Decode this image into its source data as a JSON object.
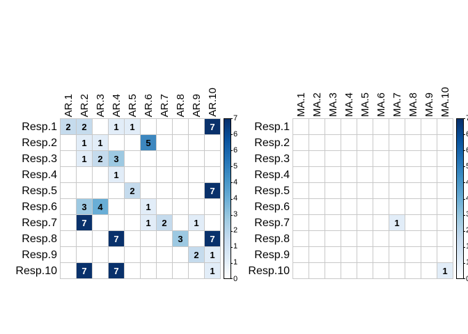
{
  "background": "#ffffff",
  "grid_line_color": "#c8c8c8",
  "value_colors": {
    "0": "#ffffff",
    "1": "#e2edf8",
    "2": "#c5dbed",
    "3": "#9dc9e2",
    "4": "#69aed6",
    "5": "#3d87bf",
    "6": "#1c60a7",
    "7": "#09316b"
  },
  "value_text_colors": {
    "light": "#ffffff",
    "dark": "#000000",
    "light_text_min_value": 6
  },
  "colorbar": {
    "ticks_top_to_bottom": [
      "7",
      "6",
      "6",
      "5",
      "4",
      "4",
      "3",
      "2",
      "1",
      "1",
      "0"
    ],
    "gradient_bottom_to_top": [
      "#ffffff",
      "#deebf7",
      "#c6dbef",
      "#9ecae1",
      "#6baed6",
      "#4292c6",
      "#2171b5",
      "#08519c",
      "#08306b"
    ],
    "border_color": "#000000"
  },
  "chart_data": [
    {
      "type": "heatmap",
      "name": "AR-heatmap",
      "title": "",
      "xlabel": "",
      "ylabel": "",
      "zlim": [
        0,
        7
      ],
      "legend_position": "right-colorbar",
      "grid": true,
      "columns": [
        "AR.1",
        "AR.2",
        "AR.3",
        "AR.4",
        "AR.5",
        "AR.6",
        "AR.7",
        "AR.8",
        "AR.9",
        "AR.10"
      ],
      "rows": [
        "Resp.1",
        "Resp.2",
        "Resp.3",
        "Resp.4",
        "Resp.5",
        "Resp.6",
        "Resp.7",
        "Resp.8",
        "Resp.9",
        "Resp.10"
      ],
      "values": [
        [
          2,
          2,
          0,
          1,
          1,
          0,
          0,
          0,
          0,
          7
        ],
        [
          0,
          1,
          1,
          0,
          0,
          5,
          0,
          0,
          0,
          0
        ],
        [
          0,
          1,
          2,
          3,
          0,
          0,
          0,
          0,
          0,
          0
        ],
        [
          0,
          0,
          0,
          1,
          0,
          0,
          0,
          0,
          0,
          0
        ],
        [
          0,
          0,
          0,
          0,
          2,
          0,
          0,
          0,
          0,
          7
        ],
        [
          0,
          3,
          4,
          0,
          0,
          1,
          0,
          0,
          0,
          0
        ],
        [
          0,
          7,
          0,
          0,
          0,
          1,
          2,
          0,
          1,
          0
        ],
        [
          0,
          0,
          0,
          7,
          0,
          0,
          0,
          3,
          0,
          7
        ],
        [
          0,
          0,
          0,
          0,
          0,
          0,
          0,
          0,
          2,
          1
        ],
        [
          0,
          7,
          0,
          7,
          0,
          0,
          0,
          0,
          0,
          1
        ]
      ]
    },
    {
      "type": "heatmap",
      "name": "MA-heatmap",
      "title": "",
      "xlabel": "",
      "ylabel": "",
      "zlim": [
        0,
        7
      ],
      "legend_position": "right-colorbar",
      "grid": true,
      "columns": [
        "MA.1",
        "MA.2",
        "MA.3",
        "MA.4",
        "MA.5",
        "MA.6",
        "MA.7",
        "MA.8",
        "MA.9",
        "MA.10"
      ],
      "rows": [
        "Resp.1",
        "Resp.2",
        "Resp.3",
        "Resp.4",
        "Resp.5",
        "Resp.6",
        "Resp.7",
        "Resp.8",
        "Resp.9",
        "Resp.10"
      ],
      "values": [
        [
          0,
          0,
          0,
          0,
          0,
          0,
          0,
          0,
          0,
          0
        ],
        [
          0,
          0,
          0,
          0,
          0,
          0,
          0,
          0,
          0,
          0
        ],
        [
          0,
          0,
          0,
          0,
          0,
          0,
          0,
          0,
          0,
          0
        ],
        [
          0,
          0,
          0,
          0,
          0,
          0,
          0,
          0,
          0,
          0
        ],
        [
          0,
          0,
          0,
          0,
          0,
          0,
          0,
          0,
          0,
          0
        ],
        [
          0,
          0,
          0,
          0,
          0,
          0,
          0,
          0,
          0,
          0
        ],
        [
          0,
          0,
          0,
          0,
          0,
          0,
          1,
          0,
          0,
          0
        ],
        [
          0,
          0,
          0,
          0,
          0,
          0,
          0,
          0,
          0,
          0
        ],
        [
          0,
          0,
          0,
          0,
          0,
          0,
          0,
          0,
          0,
          0
        ],
        [
          0,
          0,
          0,
          0,
          0,
          0,
          0,
          0,
          0,
          1
        ]
      ]
    }
  ]
}
